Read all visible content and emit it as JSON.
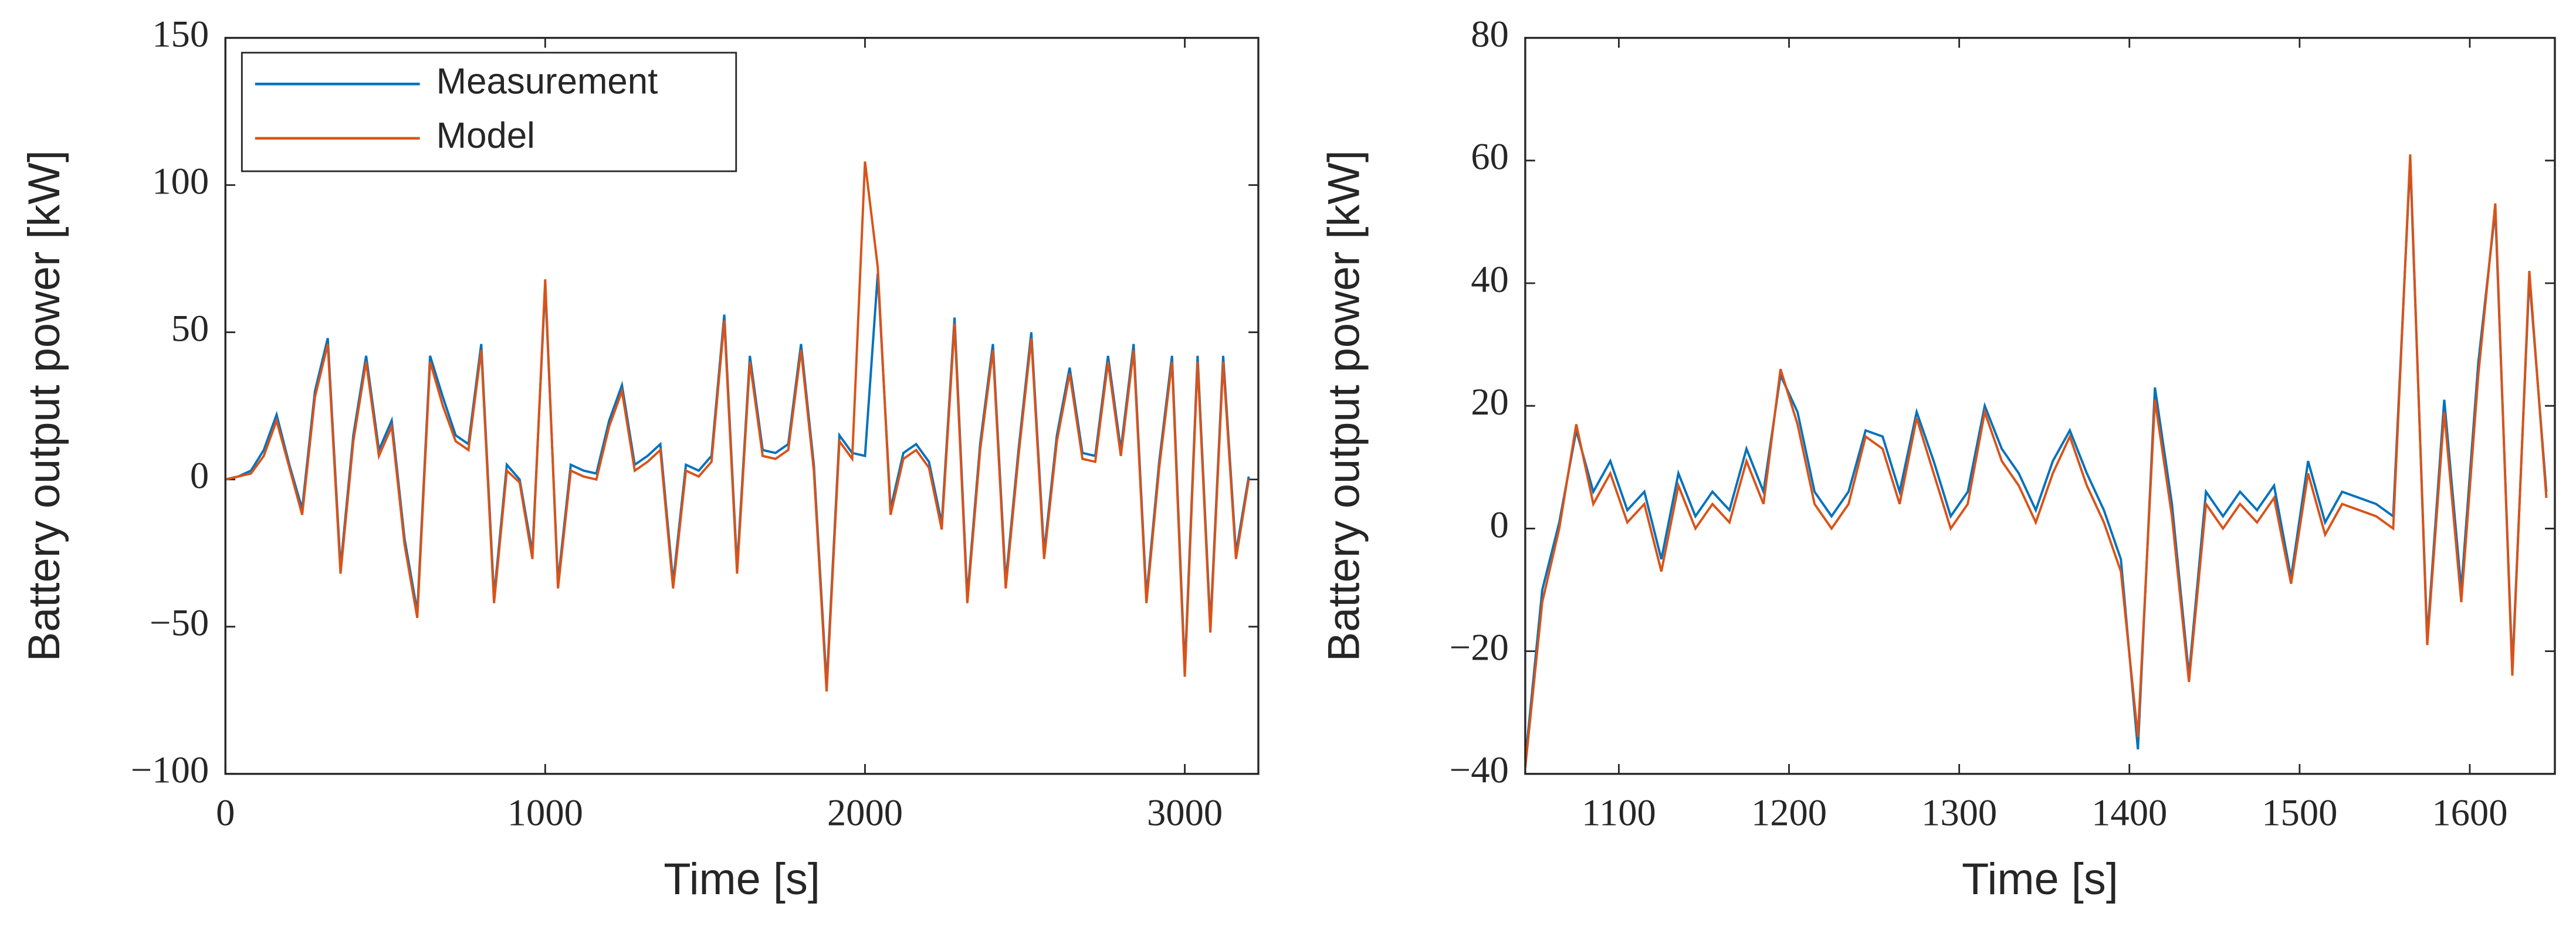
{
  "chart_data": [
    {
      "type": "line",
      "xlabel": "Time [s]",
      "ylabel": "Battery output power [kW]",
      "xlim": [
        0,
        3230
      ],
      "xticks": [
        0,
        1000,
        2000,
        3000
      ],
      "ylim": [
        -100,
        150
      ],
      "yticks": [
        {
          "value": -100,
          "label": "−100"
        },
        {
          "value": -50,
          "label": "−50"
        },
        0,
        50,
        100,
        150
      ],
      "legend": "upper left",
      "x": [
        0,
        40,
        80,
        120,
        160,
        200,
        240,
        280,
        320,
        360,
        400,
        440,
        480,
        520,
        560,
        600,
        640,
        680,
        720,
        760,
        800,
        840,
        880,
        920,
        960,
        1000,
        1040,
        1080,
        1120,
        1160,
        1200,
        1240,
        1280,
        1320,
        1360,
        1400,
        1440,
        1480,
        1520,
        1560,
        1600,
        1640,
        1680,
        1720,
        1760,
        1800,
        1840,
        1880,
        1920,
        1960,
        2000,
        2040,
        2080,
        2120,
        2160,
        2200,
        2240,
        2280,
        2320,
        2360,
        2400,
        2440,
        2480,
        2520,
        2560,
        2600,
        2640,
        2680,
        2720,
        2760,
        2800,
        2840,
        2880,
        2920,
        2960,
        3000,
        3040,
        3080,
        3120,
        3160,
        3200
      ],
      "series": [
        {
          "name": "Measurement",
          "color": "#0072BD",
          "values": [
            0,
            1,
            3,
            10,
            22,
            5,
            -10,
            30,
            48,
            -30,
            15,
            42,
            10,
            20,
            -20,
            -45,
            42,
            28,
            15,
            12,
            46,
            -40,
            5,
            0,
            -25,
            66,
            -35,
            5,
            3,
            2,
            20,
            32,
            5,
            8,
            12,
            -35,
            5,
            3,
            8,
            56,
            -30,
            42,
            10,
            9,
            12,
            46,
            5,
            -70,
            15,
            9,
            8,
            70,
            -10,
            9,
            12,
            6,
            -15,
            55,
            -40,
            12,
            46,
            -35,
            10,
            50,
            -25,
            15,
            38,
            9,
            8,
            42,
            10,
            46,
            -40,
            6,
            42,
            -65,
            42,
            -50,
            42,
            -25,
            1
          ]
        },
        {
          "name": "Model",
          "color": "#D95319",
          "values": [
            0,
            1,
            2,
            8,
            20,
            4,
            -12,
            28,
            46,
            -32,
            13,
            40,
            8,
            18,
            -22,
            -47,
            40,
            25,
            13,
            10,
            44,
            -42,
            3,
            -1,
            -27,
            68,
            -37,
            3,
            1,
            0,
            18,
            30,
            3,
            6,
            10,
            -37,
            3,
            1,
            6,
            54,
            -32,
            40,
            8,
            7,
            10,
            44,
            3,
            -72,
            13,
            7,
            108,
            72,
            -12,
            7,
            10,
            4,
            -17,
            53,
            -42,
            10,
            44,
            -37,
            8,
            48,
            -27,
            13,
            36,
            7,
            6,
            40,
            8,
            44,
            -42,
            4,
            40,
            -67,
            40,
            -52,
            40,
            -27,
            0
          ]
        }
      ]
    },
    {
      "type": "line",
      "xlabel": "Time [s]",
      "ylabel": "Battery output power [kW]",
      "xlim": [
        1045,
        1650
      ],
      "xticks": [
        1100,
        1200,
        1300,
        1400,
        1500,
        1600
      ],
      "ylim": [
        -40,
        80
      ],
      "yticks": [
        {
          "value": -40,
          "label": "−40"
        },
        {
          "value": -20,
          "label": "−20"
        },
        0,
        20,
        40,
        60,
        80
      ],
      "x": [
        1045,
        1055,
        1065,
        1075,
        1085,
        1095,
        1105,
        1115,
        1125,
        1135,
        1145,
        1155,
        1165,
        1175,
        1185,
        1195,
        1205,
        1215,
        1225,
        1235,
        1245,
        1255,
        1265,
        1275,
        1285,
        1295,
        1305,
        1315,
        1325,
        1335,
        1345,
        1355,
        1365,
        1375,
        1385,
        1395,
        1405,
        1415,
        1425,
        1435,
        1445,
        1455,
        1465,
        1475,
        1485,
        1495,
        1505,
        1515,
        1525,
        1535,
        1545,
        1555,
        1565,
        1575,
        1585,
        1595,
        1605,
        1615,
        1625,
        1635,
        1645
      ],
      "series": [
        {
          "name": "Measurement",
          "color": "#0072BD",
          "values": [
            -38,
            -10,
            1,
            16,
            6,
            11,
            3,
            6,
            -5,
            9,
            2,
            6,
            3,
            13,
            6,
            25,
            19,
            6,
            2,
            6,
            16,
            15,
            6,
            19,
            11,
            2,
            6,
            20,
            13,
            9,
            3,
            11,
            16,
            9,
            3,
            -5,
            -36,
            23,
            4,
            -24,
            6,
            2,
            6,
            3,
            7,
            -8,
            11,
            1,
            6,
            5,
            4,
            2,
            60,
            -18,
            21,
            -10,
            27,
            52,
            -23,
            41,
            6
          ]
        },
        {
          "name": "Model",
          "color": "#D95319",
          "values": [
            -39,
            -12,
            0,
            17,
            4,
            9,
            1,
            4,
            -7,
            7,
            0,
            4,
            1,
            11,
            4,
            26,
            17,
            4,
            0,
            4,
            15,
            13,
            4,
            18,
            9,
            0,
            4,
            19,
            11,
            7,
            1,
            9,
            15,
            7,
            1,
            -7,
            -34,
            21,
            2,
            -25,
            4,
            0,
            4,
            1,
            5,
            -9,
            9,
            -1,
            4,
            3,
            2,
            0,
            61,
            -19,
            19,
            -12,
            25,
            53,
            -24,
            42,
            5
          ]
        }
      ]
    }
  ]
}
